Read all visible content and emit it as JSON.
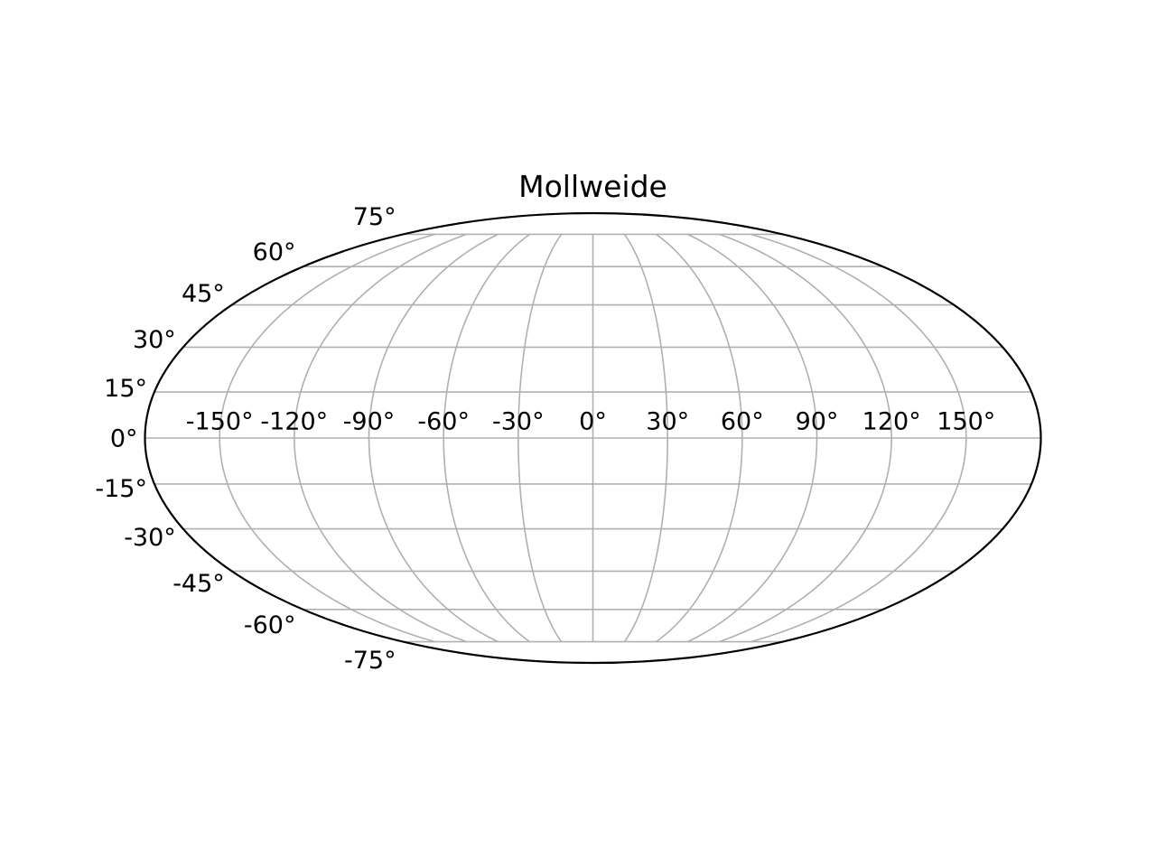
{
  "chart_data": {
    "type": "line",
    "subtype": "map-projection-graticule",
    "projection": "Mollweide",
    "title": "Mollweide",
    "parallels_deg": [
      75,
      60,
      45,
      30,
      15,
      0,
      -15,
      -30,
      -45,
      -60,
      -75
    ],
    "latitude_tick_labels": [
      "75°",
      "60°",
      "45°",
      "30°",
      "15°",
      "0°",
      "-15°",
      "-30°",
      "-45°",
      "-60°",
      "-75°"
    ],
    "meridians_deg": [
      -150,
      -120,
      -90,
      -60,
      -30,
      0,
      30,
      60,
      90,
      120,
      150
    ],
    "longitude_tick_labels": [
      "-150°",
      "-120°",
      "-90°",
      "-60°",
      "-30°",
      "0°",
      "30°",
      "60°",
      "90°",
      "120°",
      "150°"
    ],
    "longitude_grid_cap_deg": 75,
    "latitude_grid_step_deg": 15,
    "longitude_grid_step_deg": 30,
    "grid_on": true,
    "grid_color": "#b0b0b0",
    "outline_color": "#000000",
    "label_color": "#000000",
    "background_color": "#ffffff",
    "lon_range": [
      -180,
      180
    ],
    "lat_range": [
      -90,
      90
    ]
  }
}
